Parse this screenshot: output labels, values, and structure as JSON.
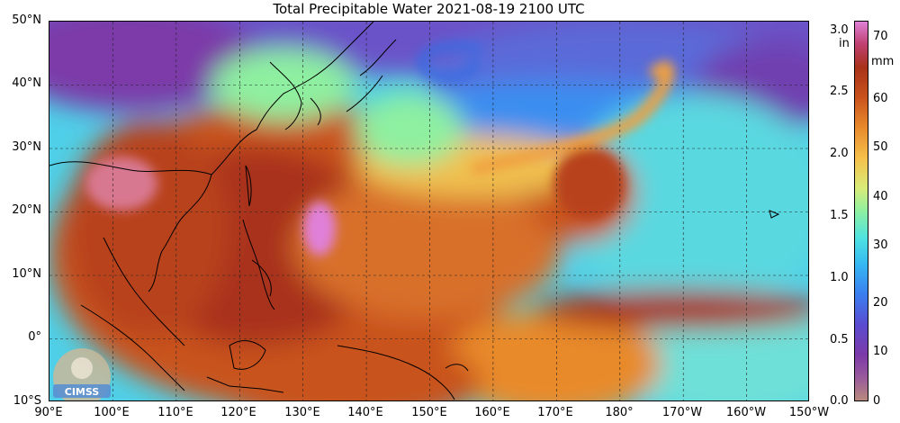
{
  "title": "Total Precipitable Water  2021-08-19 2100 UTC",
  "lat_labels": [
    "50°N",
    "40°N",
    "30°N",
    "20°N",
    "10°N",
    "0°",
    "10°S"
  ],
  "lon_labels": [
    "90°E",
    "100°E",
    "110°E",
    "120°E",
    "130°E",
    "140°E",
    "150°E",
    "160°E",
    "170°E",
    "180°",
    "170°W",
    "160°W",
    "150°W"
  ],
  "colorbar": {
    "inch_unit": "in",
    "mm_unit": "mm",
    "inch_ticks": [
      "3.0",
      "2.5",
      "2.0",
      "1.5",
      "1.0",
      "0.5",
      "0.0"
    ],
    "mm_ticks": [
      "70",
      "60",
      "50",
      "40",
      "30",
      "20",
      "10",
      "0"
    ]
  },
  "logo_text": "CIMSS",
  "colors": {
    "moist": "#c9521c",
    "very_moist": "#a8321a",
    "dry": "#7c3aa8",
    "mid": "#4fe3e0",
    "very_high": "#e080d8"
  }
}
